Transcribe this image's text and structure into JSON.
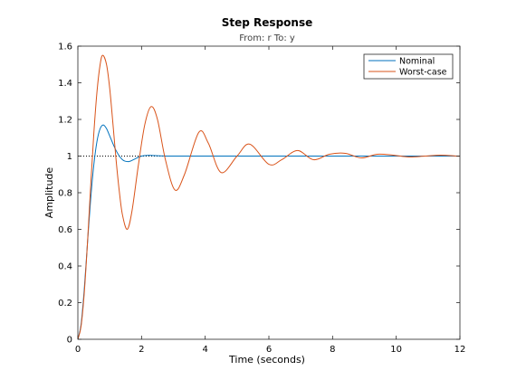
{
  "chart_data": {
    "type": "line",
    "title": "Step Response",
    "subtitle": "From: r  To: y",
    "xlabel": "Time (seconds)",
    "ylabel": "Amplitude",
    "xlim": [
      0,
      12
    ],
    "ylim": [
      0,
      1.6
    ],
    "xticks": [
      0,
      2,
      4,
      6,
      8,
      10,
      12
    ],
    "yticks": [
      0,
      0.2,
      0.4,
      0.6,
      0.8,
      1,
      1.2,
      1.4,
      1.6
    ],
    "xtick_labels": [
      "0",
      "2",
      "4",
      "6",
      "8",
      "10",
      "12"
    ],
    "ytick_labels": [
      "0",
      "0.2",
      "0.4",
      "0.6",
      "0.8",
      "1",
      "1.2",
      "1.4",
      "1.6"
    ],
    "grid": false,
    "legend_position": "top-right",
    "reference_line": {
      "y": 1,
      "style": "dotted",
      "color": "#000000"
    },
    "series": [
      {
        "name": "Nominal",
        "color": "#0072BD",
        "x": [
          0,
          0.1,
          0.2,
          0.3,
          0.4,
          0.5,
          0.6,
          0.7,
          0.8,
          0.9,
          1.0,
          1.2,
          1.4,
          1.6,
          1.8,
          2.0,
          2.2,
          2.5,
          3.0,
          4.0,
          6.0,
          8.0,
          10.0,
          12.0
        ],
        "y": [
          0,
          0.08,
          0.27,
          0.52,
          0.76,
          0.95,
          1.08,
          1.15,
          1.17,
          1.15,
          1.11,
          1.03,
          0.98,
          0.97,
          0.985,
          1.0,
          1.004,
          1.002,
          1.0,
          1.0,
          1.0,
          1.0,
          1.0,
          1.0
        ]
      },
      {
        "name": "Worst-case",
        "color": "#D95319",
        "x": [
          0,
          0.1,
          0.2,
          0.3,
          0.4,
          0.5,
          0.6,
          0.7,
          0.78,
          0.9,
          1.0,
          1.1,
          1.2,
          1.3,
          1.4,
          1.55,
          1.7,
          1.9,
          2.1,
          2.3,
          2.5,
          2.75,
          3.05,
          3.35,
          3.8,
          4.1,
          4.5,
          5.0,
          5.4,
          6.0,
          6.4,
          6.9,
          7.4,
          7.9,
          8.4,
          8.9,
          9.4,
          9.9,
          10.4,
          10.9,
          11.4,
          11.9,
          12.0
        ],
        "y": [
          0,
          0.07,
          0.25,
          0.52,
          0.83,
          1.12,
          1.35,
          1.5,
          1.55,
          1.5,
          1.37,
          1.18,
          0.98,
          0.81,
          0.68,
          0.6,
          0.7,
          0.95,
          1.17,
          1.27,
          1.2,
          0.98,
          0.815,
          0.9,
          1.13,
          1.07,
          0.91,
          1.0,
          1.065,
          0.955,
          0.98,
          1.03,
          0.98,
          1.01,
          1.015,
          0.99,
          1.01,
          1.005,
          0.995,
          1.0,
          1.005,
          1.0,
          1.0
        ]
      }
    ]
  }
}
